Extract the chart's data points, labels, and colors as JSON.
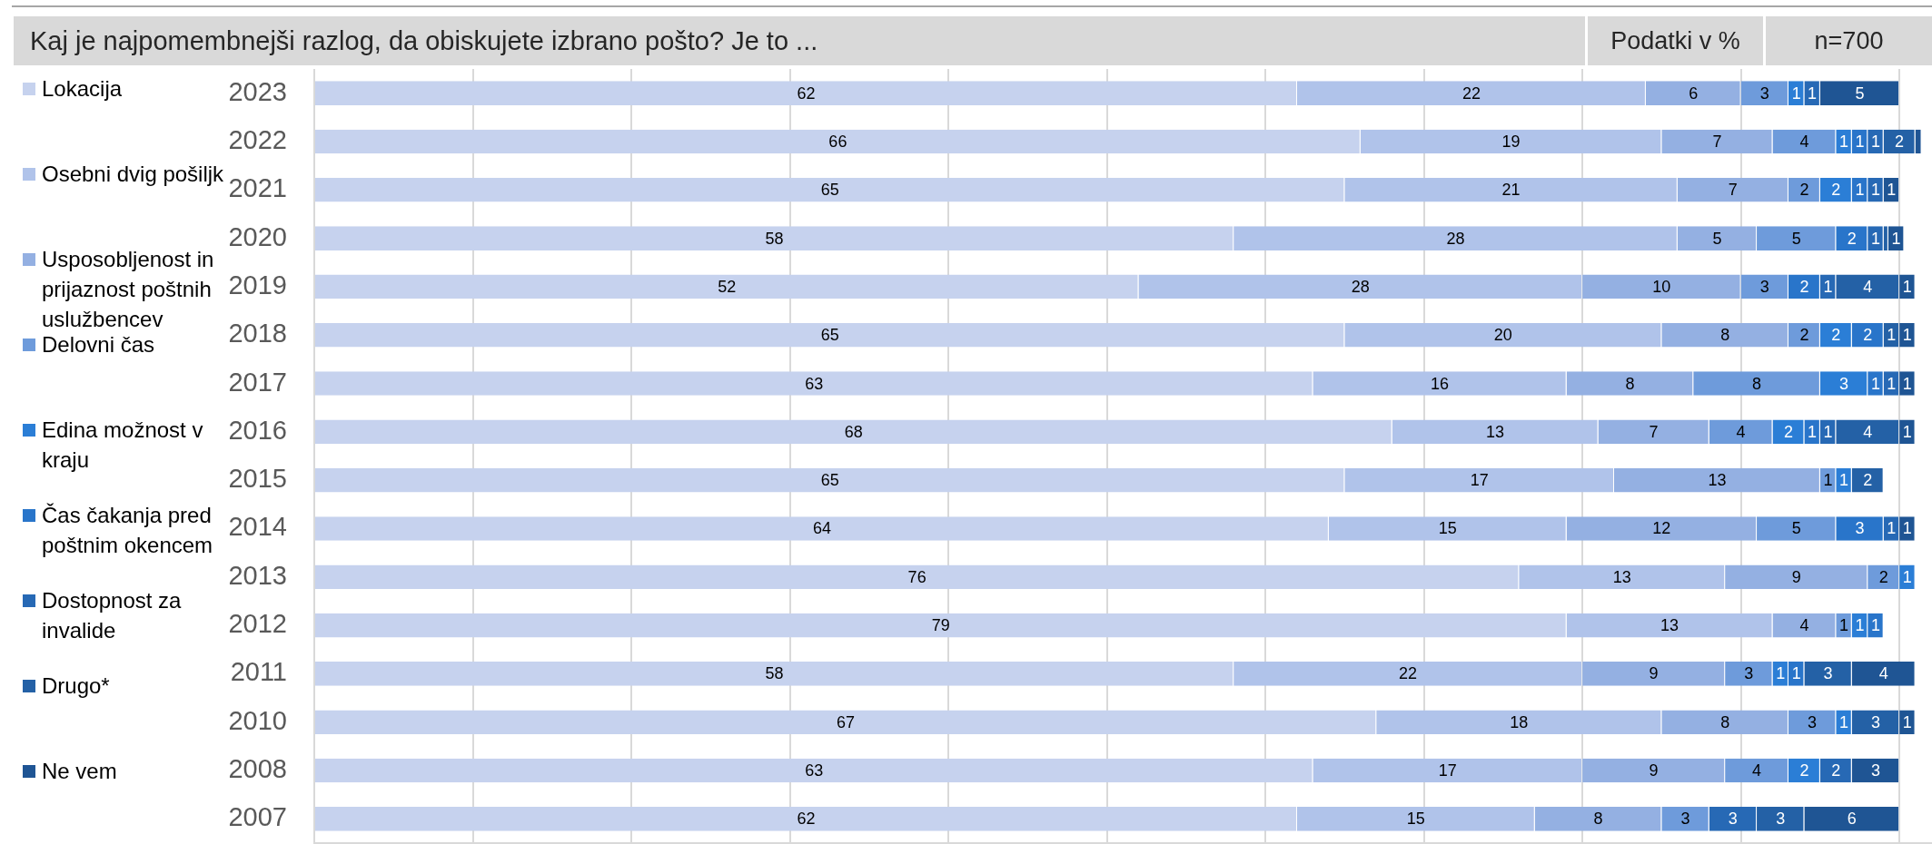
{
  "chart_data": {
    "type": "bar",
    "orientation": "horizontal",
    "stacked": true,
    "title": "Kaj je najpomembnejši razlog, da obiskujete izbrano pošto? Je to ...",
    "annotations": [
      "Podatki v %",
      "n=700"
    ],
    "categories": [
      "2023",
      "2022",
      "2021",
      "2020",
      "2019",
      "2018",
      "2017",
      "2016",
      "2015",
      "2014",
      "2013",
      "2012",
      "2011",
      "2010",
      "2008",
      "2007"
    ],
    "series": [
      {
        "name": "Lokacija",
        "color": "#c6d2ee",
        "values": [
          62,
          66,
          65,
          58,
          52,
          65,
          63,
          68,
          65,
          64,
          76,
          79,
          58,
          67,
          63,
          62
        ],
        "value_labels": [
          "62",
          "66",
          "65",
          "58",
          "52",
          "65",
          "63",
          "68",
          "65",
          "64",
          "76",
          "79",
          "58",
          "67",
          "63",
          "62"
        ]
      },
      {
        "name": "Osebni dvig pošiljk",
        "color": "#b0c3ea",
        "values": [
          22,
          19,
          21,
          28,
          28,
          20,
          16,
          13,
          17,
          15,
          13,
          13,
          22,
          18,
          17,
          15
        ],
        "value_labels": [
          "22",
          "19",
          "21",
          "28",
          "28",
          "20",
          "16",
          "13",
          "17",
          "15",
          "13",
          "13",
          "22",
          "18",
          "17",
          "15"
        ]
      },
      {
        "name": "Usposobljenost in prijaznost poštnih uslužbencev",
        "color": "#94b0e2",
        "values": [
          6,
          7,
          7,
          5,
          10,
          8,
          8,
          7,
          13,
          12,
          9,
          4,
          9,
          8,
          9,
          8
        ],
        "value_labels": [
          "6",
          "7",
          "7",
          "5",
          "10",
          "8",
          "8",
          "7",
          "13",
          "12",
          "9",
          "4",
          "9",
          "8",
          "9",
          "8"
        ]
      },
      {
        "name": "Delovni čas",
        "color": "#6e9bdb",
        "values": [
          3,
          4,
          2,
          5,
          3,
          2,
          8,
          4,
          1,
          5,
          2,
          1,
          3,
          3,
          4,
          3
        ],
        "value_labels": [
          "3",
          "4",
          "2",
          "5",
          "3",
          "2",
          "8",
          "4",
          "1",
          "5",
          "2",
          "1",
          "3",
          "3",
          "4",
          "3"
        ]
      },
      {
        "name": "Edina možnost v kraju",
        "color": "#2b7ed6",
        "values": [
          1,
          1,
          2,
          null,
          null,
          2,
          3,
          2,
          1,
          null,
          1,
          1,
          1,
          1,
          2,
          null
        ],
        "value_labels": [
          "1",
          "1",
          "2",
          null,
          null,
          "2",
          "3",
          "2",
          "1",
          null,
          "1",
          "1",
          "1",
          "1",
          "2",
          null
        ]
      },
      {
        "name": "Čas čakanja pred poštnim okencem",
        "color": "#2975ca",
        "values": [
          null,
          1,
          1,
          2,
          2,
          2,
          1,
          1,
          null,
          3,
          null,
          1,
          1,
          null,
          null,
          null
        ],
        "value_labels": [
          null,
          "1",
          "1",
          "2",
          "2",
          "2",
          "1",
          "1",
          null,
          "3",
          null,
          "1",
          "1",
          null,
          null,
          null
        ]
      },
      {
        "name": "Dostopnost za invalide",
        "color": "#2769b5",
        "values": [
          1,
          1,
          1,
          1,
          1,
          null,
          1,
          1,
          null,
          1,
          null,
          null,
          null,
          null,
          2,
          3
        ],
        "value_labels": [
          "1",
          "1",
          "1",
          "1",
          "1",
          null,
          "1",
          "1",
          null,
          "1",
          null,
          null,
          null,
          null,
          "2",
          "3"
        ]
      },
      {
        "name": "Drugo*",
        "color": "#2461a6",
        "values": [
          null,
          2,
          null,
          0.3,
          4,
          1,
          null,
          4,
          2,
          null,
          null,
          null,
          3,
          3,
          null,
          3
        ],
        "value_labels": [
          null,
          "2",
          null,
          null,
          "4",
          "1",
          null,
          "4",
          "2",
          null,
          null,
          null,
          "3",
          "3",
          null,
          "3"
        ]
      },
      {
        "name": "Ne vem",
        "color": "#1f5594",
        "values": [
          5,
          0.4,
          1,
          1,
          1,
          1,
          1,
          1,
          null,
          1,
          null,
          null,
          4,
          1,
          3,
          6
        ],
        "value_labels": [
          "5",
          null,
          "1",
          "1",
          "1",
          "1",
          "1",
          "1",
          null,
          "1",
          null,
          null,
          "4",
          "1",
          "3",
          "6"
        ]
      }
    ],
    "xlim": [
      0,
      102
    ],
    "xticks": [
      {
        "value": 0,
        "label": null
      },
      {
        "value": 10,
        "label": null
      },
      {
        "value": 20,
        "label": null
      },
      {
        "value": 30,
        "label": null
      },
      {
        "value": 40,
        "label": null
      },
      {
        "value": 50,
        "label": null
      },
      {
        "value": 60,
        "label": null
      },
      {
        "value": 70,
        "label": null
      },
      {
        "value": 80,
        "label": null
      },
      {
        "value": 90,
        "label": null
      },
      {
        "value": 100,
        "label": null
      }
    ],
    "tick_labels": "y",
    "grid": "x",
    "legend": "left"
  }
}
